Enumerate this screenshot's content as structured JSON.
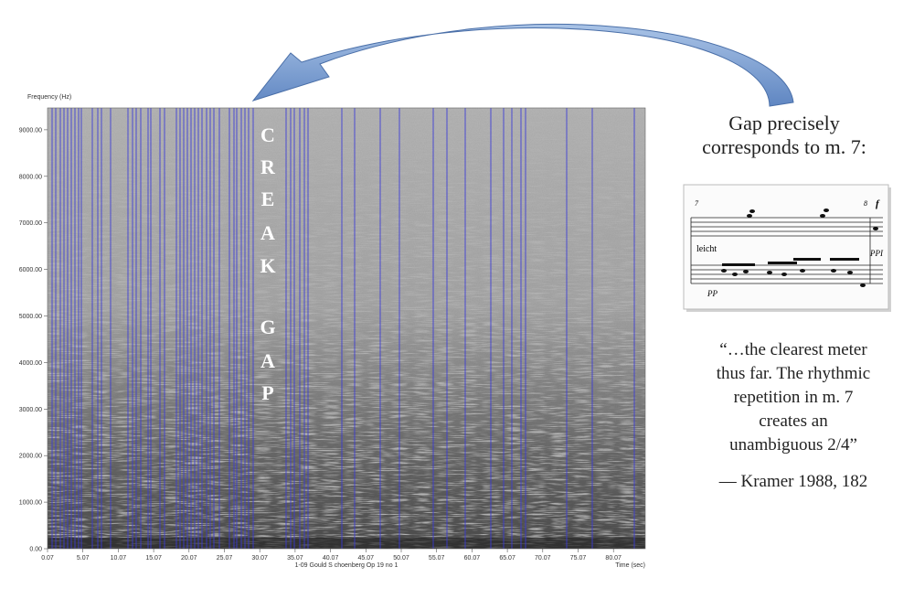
{
  "spectrogram": {
    "y_axis_label": "Frequency (Hz)",
    "x_axis_label": "Time (sec)",
    "file_label": "1-09 Gould S choenberg Op 19 no 1",
    "y_ticks": [
      "0.00",
      "1000.00",
      "2000.00",
      "3000.00",
      "4000.00",
      "5000.00",
      "6000.00",
      "7000.00",
      "8000.00",
      "9000.00"
    ],
    "x_ticks": [
      "0.07",
      "5.07",
      "10.07",
      "15.07",
      "20.07",
      "25.07",
      "30.07",
      "35.07",
      "40.07",
      "45.07",
      "50.07",
      "55.07",
      "60.07",
      "65.07",
      "70.07",
      "75.07",
      "80.07"
    ],
    "overlay_letters": [
      "C",
      "R",
      "E",
      "A",
      "K",
      "G",
      "A",
      "P"
    ]
  },
  "caption": [
    "Gap precisely",
    "corresponds to m. 7:"
  ],
  "score": {
    "measure_start": "7",
    "measure_end": "8",
    "dynamic_top": "f",
    "expression": "leicht",
    "dynamic_right": "PPI",
    "dynamic_bottom": "PP"
  },
  "quote": [
    "“…the clearest meter",
    "thus far. The rhythmic",
    "repetition in m. 7",
    "creates an",
    "unambiguous 2/4”"
  ],
  "citation": "— Kramer 1988, 182"
}
